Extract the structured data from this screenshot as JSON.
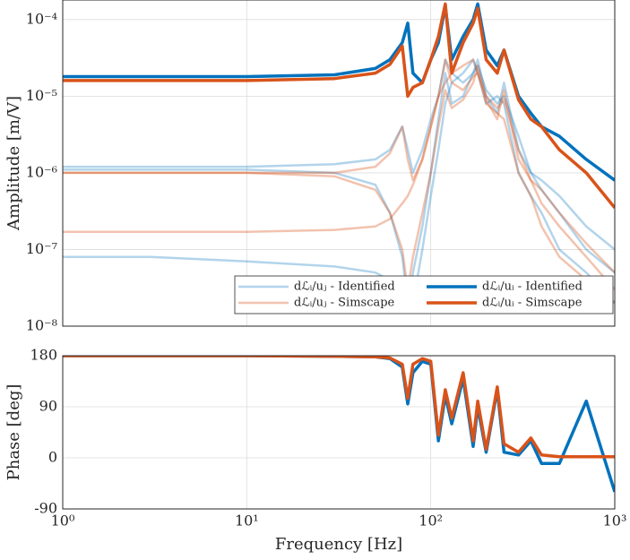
{
  "chart_data": [
    {
      "type": "line",
      "ylabel": "Amplitude [m/V]",
      "xlog": true,
      "ylog": true,
      "grid": true,
      "legend": "lower right",
      "xlim": [
        1,
        1000
      ],
      "ylim": [
        1e-08,
        0.00018
      ],
      "xticks": [],
      "yticks": [
        {
          "value": 1e-08,
          "label": "10⁻⁸"
        },
        {
          "value": 1e-07,
          "label": "10⁻⁷"
        },
        {
          "value": 1e-06,
          "label": "10⁻⁶"
        },
        {
          "value": 1e-05,
          "label": "10⁻⁵"
        },
        {
          "value": 0.0001,
          "label": "10⁻⁴"
        }
      ],
      "x": [
        1,
        3,
        10,
        30,
        50,
        60,
        70,
        75,
        80,
        90,
        100,
        110,
        120,
        130,
        150,
        170,
        180,
        200,
        230,
        250,
        300,
        350,
        400,
        500,
        700,
        1000
      ],
      "series": [
        {
          "name": "dℒᵢ/uⱼ - Identified",
          "color": "#0072bd",
          "alpha": 0.3,
          "width": 2.5,
          "values": [
            1.1e-06,
            1.1e-06,
            1.1e-06,
            1e-06,
            7e-07,
            3e-07,
            8e-08,
            2e-08,
            5e-08,
            2e-07,
            1e-06,
            5e-06,
            2e-05,
            8e-06,
            1e-05,
            2e-05,
            3e-05,
            1e-05,
            6e-06,
            1.5e-05,
            2e-06,
            1e-06,
            6e-07,
            3e-07,
            1e-07,
            5e-08
          ]
        },
        {
          "color": "#0072bd",
          "alpha": 0.3,
          "width": 2.5,
          "values": [
            8e-08,
            8e-08,
            7e-08,
            6e-08,
            5e-08,
            4e-08,
            3e-08,
            null,
            2e-08,
            1e-07,
            5e-07,
            2e-06,
            8e-06,
            1.5e-05,
            2e-05,
            3e-05,
            2e-05,
            8e-06,
            1e-05,
            8e-06,
            1e-06,
            5e-07,
            3e-07,
            1e-07,
            5e-08,
            2e-08
          ]
        },
        {
          "color": "#0072bd",
          "alpha": 0.3,
          "width": 2.5,
          "values": [
            1.2e-06,
            1.2e-06,
            1.2e-06,
            1.3e-06,
            1.5e-06,
            2e-06,
            4e-06,
            2e-06,
            1e-06,
            2e-06,
            5e-06,
            1e-05,
            3e-05,
            2e-05,
            1.5e-05,
            2e-05,
            2.5e-05,
            1.2e-05,
            8e-06,
            1e-05,
            3e-06,
            1e-06,
            8e-07,
            5e-07,
            2e-07,
            1e-07
          ]
        },
        {
          "name": "dℒᵢ/uⱼ - Simscape",
          "color": "#d95319",
          "alpha": 0.35,
          "width": 2.5,
          "values": [
            1e-06,
            1e-06,
            1e-06,
            1e-06,
            1.2e-06,
            1.8e-06,
            4e-06,
            1.5e-06,
            8e-07,
            1.5e-06,
            4e-06,
            1e-05,
            3e-05,
            1.5e-05,
            1.2e-05,
            1.8e-05,
            2e-05,
            1e-05,
            7e-06,
            9e-06,
            2e-06,
            8e-07,
            6e-07,
            3e-07,
            1.2e-07,
            5e-08
          ]
        },
        {
          "color": "#d95319",
          "alpha": 0.35,
          "width": 2.5,
          "values": [
            1.7e-07,
            1.7e-07,
            1.7e-07,
            1.8e-07,
            2e-07,
            2.5e-07,
            4e-07,
            5e-07,
            7e-07,
            1.5e-06,
            4e-06,
            1e-05,
            1.5e-05,
            2e-05,
            2.5e-05,
            3e-05,
            2e-05,
            8e-06,
            6e-06,
            5e-06,
            1e-06,
            5e-07,
            2e-07,
            8e-08,
            4e-08,
            2e-08
          ]
        },
        {
          "color": "#d95319",
          "alpha": 0.35,
          "width": 2.5,
          "values": [
            1e-06,
            1e-06,
            1e-06,
            9e-07,
            6e-07,
            3e-07,
            1e-07,
            3e-08,
            8e-08,
            3e-07,
            1e-06,
            4e-06,
            1.2e-05,
            7e-06,
            9e-06,
            1.5e-05,
            2.5e-05,
            9e-06,
            5e-06,
            1.2e-05,
            1.5e-06,
            8e-07,
            4e-07,
            2e-07,
            8e-08,
            3e-08
          ]
        },
        {
          "name": "dℒᵢ/uᵢ - Identified",
          "color": "#0072bd",
          "alpha": 1,
          "width": 3.5,
          "values": [
            1.8e-05,
            1.8e-05,
            1.8e-05,
            1.9e-05,
            2.3e-05,
            3e-05,
            5e-05,
            9e-05,
            2e-05,
            1.5e-05,
            3e-05,
            5e-05,
            0.00015,
            3e-05,
            6e-05,
            0.0001,
            0.00016,
            4e-05,
            2.5e-05,
            4e-05,
            1e-05,
            6e-06,
            4e-06,
            3e-06,
            1.5e-06,
            8e-07
          ]
        },
        {
          "name": "dℒᵢ/uᵢ - Simscape",
          "color": "#d95319",
          "alpha": 1,
          "width": 3.5,
          "values": [
            1.6e-05,
            1.6e-05,
            1.6e-05,
            1.7e-05,
            2e-05,
            2.6e-05,
            4.5e-05,
            1e-05,
            1.3e-05,
            1.5e-05,
            3e-05,
            6e-05,
            0.00016,
            2e-05,
            5e-05,
            9e-05,
            0.00014,
            3e-05,
            2e-05,
            4e-05,
            9e-06,
            5e-06,
            4e-06,
            2e-06,
            1e-06,
            3.5e-07
          ]
        }
      ]
    },
    {
      "type": "line",
      "ylabel": "Phase [deg]",
      "xlabel": "Frequency [Hz]",
      "xlog": true,
      "ylog": false,
      "grid": true,
      "xlim": [
        1,
        1000
      ],
      "ylim": [
        -90,
        180
      ],
      "xticks": [
        {
          "value": 1,
          "label": "10⁰"
        },
        {
          "value": 10,
          "label": "10¹"
        },
        {
          "value": 100,
          "label": "10²"
        },
        {
          "value": 1000,
          "label": "10³"
        }
      ],
      "yticks": [
        -90,
        0,
        90,
        180
      ],
      "x": [
        1,
        3,
        10,
        30,
        50,
        60,
        70,
        75,
        80,
        90,
        100,
        110,
        120,
        130,
        150,
        170,
        180,
        200,
        230,
        250,
        300,
        350,
        400,
        500,
        700,
        1000
      ],
      "series": [
        {
          "color": "#0072bd",
          "alpha": 1,
          "width": 3.5,
          "values": [
            180,
            180,
            180,
            179,
            178,
            175,
            160,
            95,
            150,
            170,
            165,
            30,
            110,
            60,
            140,
            20,
            90,
            10,
            120,
            10,
            5,
            30,
            -10,
            -10,
            100,
            -60
          ]
        },
        {
          "color": "#d95319",
          "alpha": 1,
          "width": 3.5,
          "values": [
            180,
            180,
            180,
            179,
            178,
            176,
            165,
            105,
            165,
            175,
            170,
            40,
            120,
            70,
            150,
            30,
            100,
            15,
            125,
            25,
            10,
            35,
            5,
            2,
            2,
            2
          ]
        }
      ]
    }
  ]
}
